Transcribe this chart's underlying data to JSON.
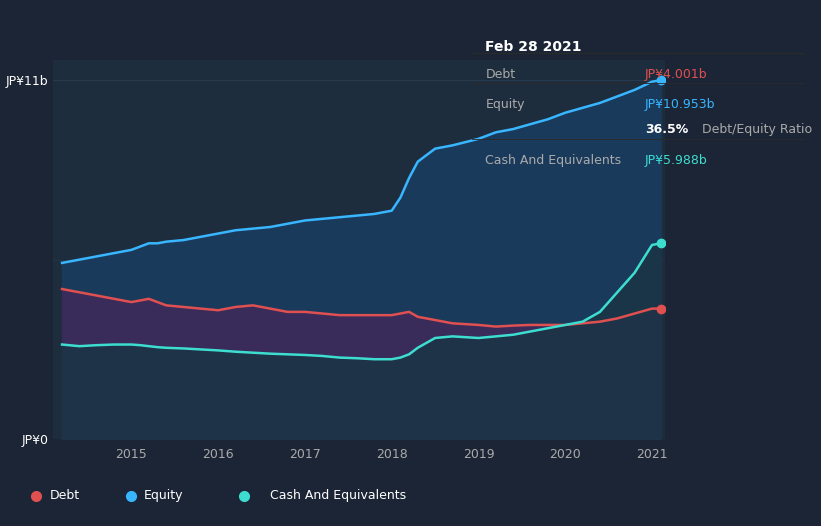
{
  "background_color": "#1c2535",
  "plot_bg_color": "#1c2535",
  "chart_area_color": "#1e2d3d",
  "tooltip_bg": "#0d0d0d",
  "colors": {
    "debt": "#e05050",
    "equity": "#38b6ff",
    "cash": "#3dddd0",
    "equity_fill": "#1a3a5c",
    "debt_fill": "#3d2a5a",
    "cash_fill": "#1a3545",
    "grid": "#2a3d52",
    "axis_text": "#aaaaaa",
    "label_text": "#cccccc"
  },
  "tooltip": {
    "date": "Feb 28 2021",
    "debt_label": "Debt",
    "debt_value": "JP¥4.001b",
    "equity_label": "Equity",
    "equity_value": "JP¥10.953b",
    "ratio_bold": "36.5%",
    "ratio_rest": " Debt/Equity Ratio",
    "cash_label": "Cash And Equivalents",
    "cash_value": "JP¥5.988b"
  },
  "ytick_labels": [
    "JP¥0",
    "JP¥11b"
  ],
  "xtick_labels": [
    "2015",
    "2016",
    "2017",
    "2018",
    "2019",
    "2020",
    "2021"
  ],
  "legend": [
    "Debt",
    "Equity",
    "Cash And Equivalents"
  ],
  "legend_colors": [
    "#e05050",
    "#38b6ff",
    "#3dddd0"
  ],
  "x": [
    2014.2,
    2014.4,
    2014.6,
    2014.8,
    2015.0,
    2015.1,
    2015.2,
    2015.3,
    2015.4,
    2015.6,
    2015.8,
    2016.0,
    2016.2,
    2016.4,
    2016.6,
    2016.8,
    2017.0,
    2017.2,
    2017.4,
    2017.6,
    2017.8,
    2018.0,
    2018.1,
    2018.2,
    2018.3,
    2018.5,
    2018.7,
    2019.0,
    2019.2,
    2019.4,
    2019.6,
    2019.8,
    2020.0,
    2020.2,
    2020.4,
    2020.6,
    2020.8,
    2021.0,
    2021.1
  ],
  "equity": [
    5.4,
    5.5,
    5.6,
    5.7,
    5.8,
    5.9,
    6.0,
    6.0,
    6.05,
    6.1,
    6.2,
    6.3,
    6.4,
    6.45,
    6.5,
    6.6,
    6.7,
    6.75,
    6.8,
    6.85,
    6.9,
    7.0,
    7.4,
    8.0,
    8.5,
    8.9,
    9.0,
    9.2,
    9.4,
    9.5,
    9.65,
    9.8,
    10.0,
    10.15,
    10.3,
    10.5,
    10.7,
    10.95,
    11.0
  ],
  "debt": [
    4.6,
    4.5,
    4.4,
    4.3,
    4.2,
    4.25,
    4.3,
    4.2,
    4.1,
    4.05,
    4.0,
    3.95,
    4.05,
    4.1,
    4.0,
    3.9,
    3.9,
    3.85,
    3.8,
    3.8,
    3.8,
    3.8,
    3.85,
    3.9,
    3.75,
    3.65,
    3.55,
    3.5,
    3.45,
    3.48,
    3.5,
    3.5,
    3.5,
    3.55,
    3.6,
    3.7,
    3.85,
    4.0,
    4.001
  ],
  "cash": [
    2.9,
    2.85,
    2.88,
    2.9,
    2.9,
    2.88,
    2.85,
    2.82,
    2.8,
    2.78,
    2.75,
    2.72,
    2.68,
    2.65,
    2.62,
    2.6,
    2.58,
    2.55,
    2.5,
    2.48,
    2.45,
    2.45,
    2.5,
    2.6,
    2.8,
    3.1,
    3.15,
    3.1,
    3.15,
    3.2,
    3.3,
    3.4,
    3.5,
    3.6,
    3.9,
    4.5,
    5.1,
    5.95,
    6.0
  ]
}
